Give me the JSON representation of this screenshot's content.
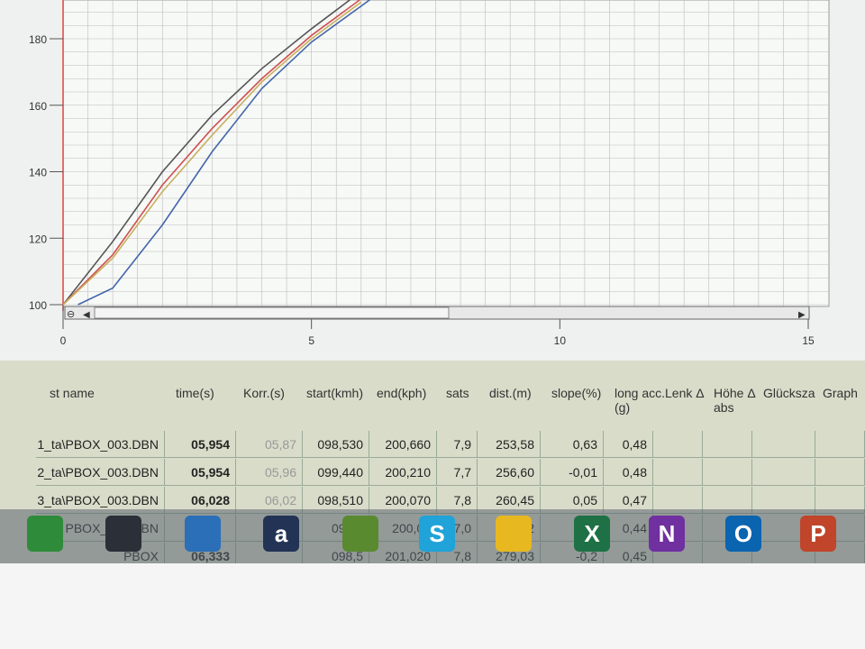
{
  "chart_data": {
    "type": "line",
    "x_ticks": [
      "0",
      "5",
      "10",
      "15"
    ],
    "y_ticks": [
      "100",
      "120",
      "140",
      "160",
      "180"
    ],
    "xlim": [
      0,
      15
    ],
    "ylim": [
      100,
      192
    ],
    "grid": true,
    "series": [
      {
        "color": "#555555",
        "x": [
          0,
          1,
          2,
          3,
          4,
          5,
          5.8
        ],
        "y": [
          100,
          119,
          140,
          157,
          171,
          183,
          192
        ]
      },
      {
        "color": "#d05050",
        "x": [
          0,
          1,
          2,
          3,
          4,
          5,
          6
        ],
        "y": [
          100,
          115,
          136,
          153,
          168,
          181,
          192
        ]
      },
      {
        "color": "#c8b060",
        "x": [
          0,
          1,
          2,
          3,
          4,
          5,
          6
        ],
        "y": [
          100,
          114,
          134,
          151,
          167,
          180,
          191
        ]
      },
      {
        "color": "#4466aa",
        "x": [
          0.3,
          1,
          2,
          3,
          4,
          5,
          6.2
        ],
        "y": [
          100,
          105,
          124,
          146,
          165,
          179,
          192
        ]
      }
    ]
  },
  "table": {
    "headers": [
      "st name",
      "time(s)",
      "Korr.(s)",
      "start(kmh)",
      "end(kph)",
      "sats",
      "dist.(m)",
      "slope(%)",
      "long acc.(g)",
      "Lenk Δ",
      "Höhe Δ abs",
      "Glücksza",
      "Graph"
    ],
    "rows": [
      [
        "1_ta\\PBOX_003.DBN",
        "05,954",
        "05,87",
        "098,530",
        "200,660",
        "7,9",
        "253,58",
        "0,63",
        "0,48"
      ],
      [
        "2_ta\\PBOX_003.DBN",
        "05,954",
        "05,96",
        "099,440",
        "200,210",
        "7,7",
        "256,60",
        "-0,01",
        "0,48"
      ],
      [
        "3_ta\\PBOX_003.DBN",
        "06,028",
        "06,02",
        "098,510",
        "200,070",
        "7,8",
        "260,45",
        "0,05",
        "0,47"
      ],
      [
        "PBOX_003.DBN",
        "",
        "",
        "099,8",
        "200,00",
        "7,0",
        "27_,_2",
        "",
        "0,44"
      ],
      [
        "PBOX",
        "06,333",
        "",
        "098,5",
        "201,020",
        "7,8",
        "279,03",
        "-0,2",
        "0,45"
      ]
    ]
  },
  "taskbar": [
    {
      "name": "store",
      "label": "",
      "color": "#2e8b3a"
    },
    {
      "name": "app",
      "label": "",
      "color": "#2a2f38"
    },
    {
      "name": "messaging",
      "label": "",
      "color": "#2a6fb8"
    },
    {
      "name": "amazon",
      "label": "a",
      "color": "#223355"
    },
    {
      "name": "spotify",
      "label": "",
      "color": "#5a8a30"
    },
    {
      "name": "skype",
      "label": "S",
      "color": "#1fa3d8"
    },
    {
      "name": "drive",
      "label": "",
      "color": "#e8b820"
    },
    {
      "name": "excel",
      "label": "X",
      "color": "#1d7144"
    },
    {
      "name": "onenote",
      "label": "N",
      "color": "#7030a0"
    },
    {
      "name": "outlook",
      "label": "O",
      "color": "#0a64b0"
    },
    {
      "name": "powerpoint",
      "label": "P",
      "color": "#c0452b"
    }
  ]
}
